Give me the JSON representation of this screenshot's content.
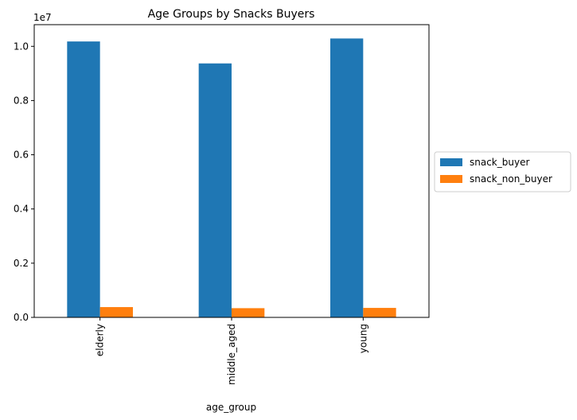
{
  "chart_data": {
    "type": "bar",
    "title": "Age Groups by Snacks Buyers",
    "xlabel": "age_group",
    "ylabel": "",
    "y_offset_label": "1e7",
    "categories": [
      "elderly",
      "middle_aged",
      "young"
    ],
    "series": [
      {
        "name": "snack_buyer",
        "color": "#1f77b4",
        "values": [
          10180000,
          9370000,
          10290000
        ]
      },
      {
        "name": "snack_non_buyer",
        "color": "#ff7f0e",
        "values": [
          380000,
          340000,
          350000
        ]
      }
    ],
    "ylim": [
      0,
      10800000
    ],
    "yticks": [
      0,
      2000000,
      4000000,
      6000000,
      8000000,
      10000000
    ],
    "ytick_labels": [
      "0.0",
      "0.2",
      "0.4",
      "0.6",
      "0.8",
      "1.0"
    ],
    "grid": false,
    "legend_position": "center-right, outside plot"
  }
}
